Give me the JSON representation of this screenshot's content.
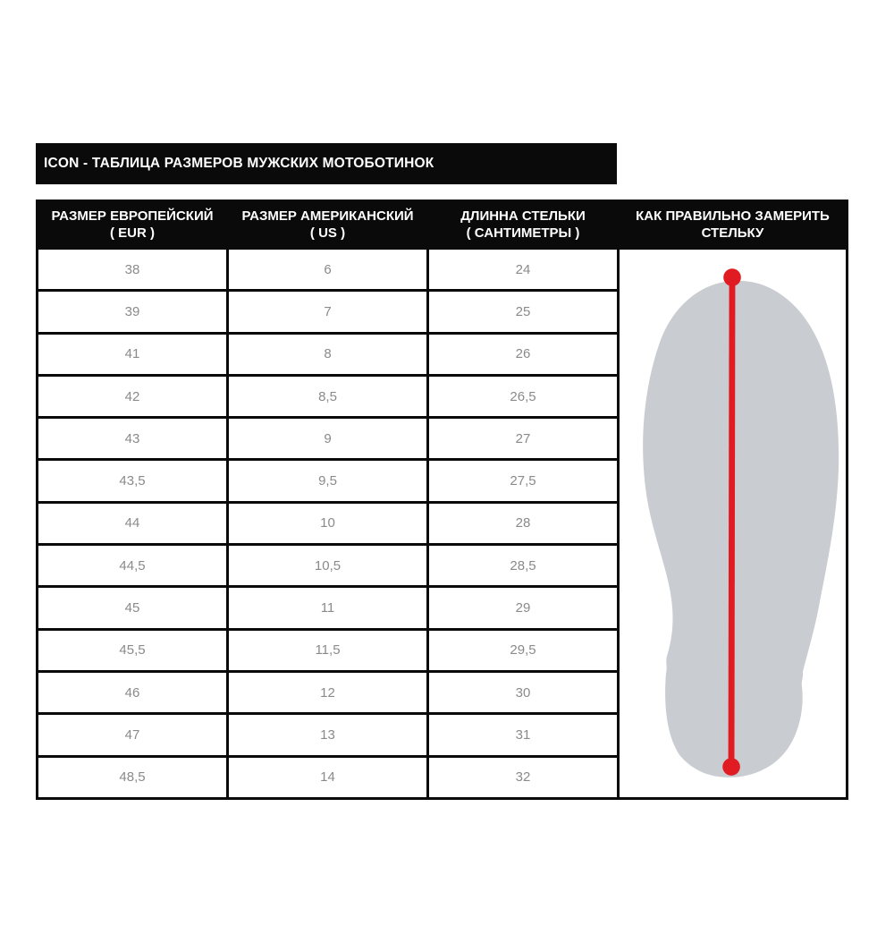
{
  "title_bar": {
    "text": "ICON - ТАБЛИЦА РАЗМЕРОВ МУЖСКИХ МОТОБОТИНОК"
  },
  "size_table": {
    "columns": [
      {
        "line1": "РАЗМЕР ЕВРОПЕЙСКИЙ",
        "line2": "( EUR )"
      },
      {
        "line1": "РАЗМЕР АМЕРИКАНСКИЙ",
        "line2": "( US )"
      },
      {
        "line1": "ДЛИННА СТЕЛЬКИ",
        "line2": "( САНТИМЕТРЫ )"
      },
      {
        "line1": "КАК ПРАВИЛЬНО ЗАМЕРИТЬ",
        "line2": "СТЕЛЬКУ"
      }
    ],
    "rows": [
      {
        "eur": "38",
        "us": "6",
        "cm": "24"
      },
      {
        "eur": "39",
        "us": "7",
        "cm": "25"
      },
      {
        "eur": "41",
        "us": "8",
        "cm": "26"
      },
      {
        "eur": "42",
        "us": "8,5",
        "cm": "26,5"
      },
      {
        "eur": "43",
        "us": "9",
        "cm": "27"
      },
      {
        "eur": "43,5",
        "us": "9,5",
        "cm": "27,5"
      },
      {
        "eur": "44",
        "us": "10",
        "cm": "28"
      },
      {
        "eur": "44,5",
        "us": "10,5",
        "cm": "28,5"
      },
      {
        "eur": "45",
        "us": "11",
        "cm": "29"
      },
      {
        "eur": "45,5",
        "us": "11,5",
        "cm": "29,5"
      },
      {
        "eur": "46",
        "us": "12",
        "cm": "30"
      },
      {
        "eur": "47",
        "us": "13",
        "cm": "31"
      },
      {
        "eur": "48,5",
        "us": "14",
        "cm": "32"
      }
    ]
  },
  "insole_figure": {
    "icon": "insole-outline-with-measurement-line-icon",
    "sole_color": "#c9ccd1",
    "line_color": "#e01b21"
  },
  "colors": {
    "page_bg": "#ffffff",
    "header_bg": "#0a0a0a",
    "header_text": "#ffffff",
    "cell_text": "#8a8a8a",
    "border": "#0a0a0a"
  }
}
